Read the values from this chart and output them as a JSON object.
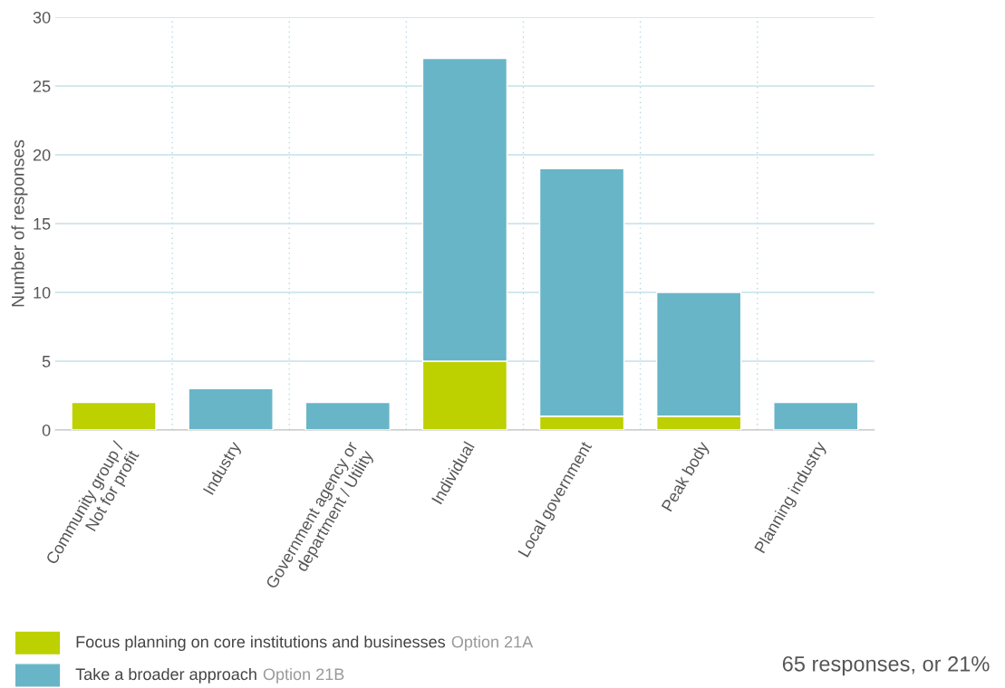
{
  "chart_data": {
    "type": "bar",
    "stacked": true,
    "ylabel": "Number of responses",
    "categories": [
      "Community group /\nNot for profit",
      "Industry",
      "Government agency or\ndepartment / Utility",
      "Individual",
      "Local government",
      "Peak body",
      "Planning industry"
    ],
    "series": [
      {
        "name": "Focus planning on core institutions and businesses",
        "color": "#bdd000",
        "values": [
          2,
          null,
          null,
          5,
          1,
          1,
          null
        ]
      },
      {
        "name": "Take a broader approach",
        "color": "#68b5c8",
        "values": [
          null,
          3,
          2,
          22,
          18,
          9,
          2
        ]
      }
    ],
    "ylim": [
      0,
      30
    ],
    "yticks": [
      0,
      5,
      10,
      15,
      20,
      25,
      30
    ],
    "grid": true,
    "legend": "bottom left",
    "annotations": [
      "Option 21A",
      "Option 21B",
      "65 responses, or 21%"
    ]
  }
}
